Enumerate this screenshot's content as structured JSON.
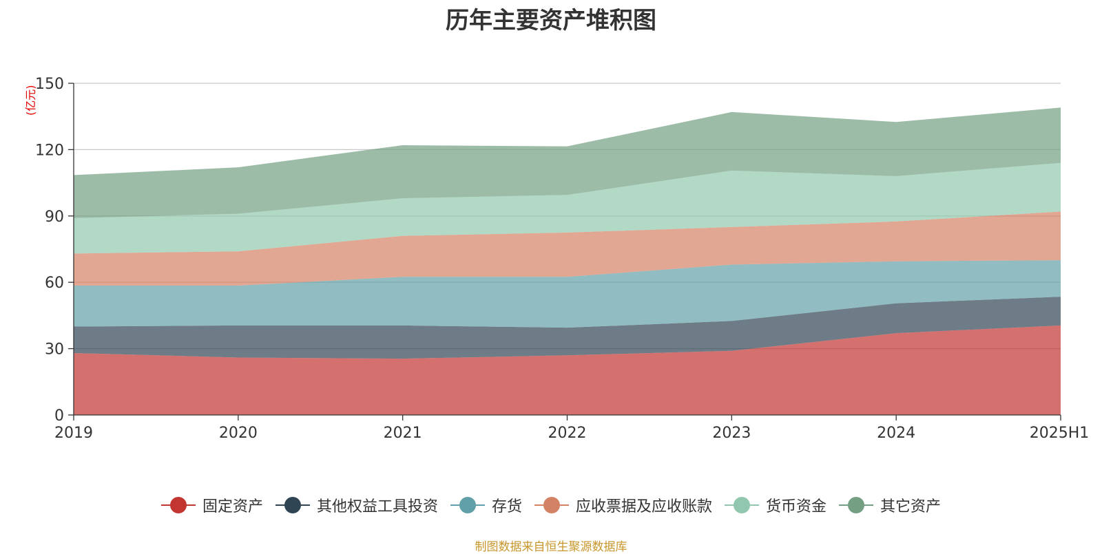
{
  "chart_data": {
    "type": "area",
    "stacked": true,
    "title": "历年主要资产堆积图",
    "unit": "(亿元)",
    "categories": [
      "2019",
      "2020",
      "2021",
      "2022",
      "2023",
      "2024",
      "2025H1"
    ],
    "ylim": [
      0,
      150
    ],
    "yticks": [
      0,
      30,
      60,
      90,
      120,
      150
    ],
    "grid": true,
    "legend_position": "bottom",
    "series": [
      {
        "name": "固定资产",
        "color": "#c23531",
        "values": [
          28,
          26,
          25.5,
          27,
          29,
          37,
          40.5
        ]
      },
      {
        "name": "其他权益工具投资",
        "color": "#2f4554",
        "values": [
          12,
          14.5,
          15,
          12.5,
          13.5,
          13.5,
          13
        ]
      },
      {
        "name": "存货",
        "color": "#61a0a8",
        "values": [
          18.5,
          18,
          22,
          23,
          25.5,
          19,
          16.5
        ]
      },
      {
        "name": "应收票据及应收账款",
        "color": "#d48265",
        "values": [
          14.5,
          15.5,
          18.5,
          20,
          17,
          18,
          22
        ]
      },
      {
        "name": "货币资金",
        "color": "#91c7ae",
        "values": [
          16,
          17,
          17,
          17,
          25.5,
          20.5,
          22
        ]
      },
      {
        "name": "其它资产",
        "color": "#749f83",
        "values": [
          19.5,
          21,
          24,
          22,
          26.5,
          24.5,
          25
        ]
      }
    ]
  },
  "source_note": "制图数据来自恒生聚源数据库"
}
